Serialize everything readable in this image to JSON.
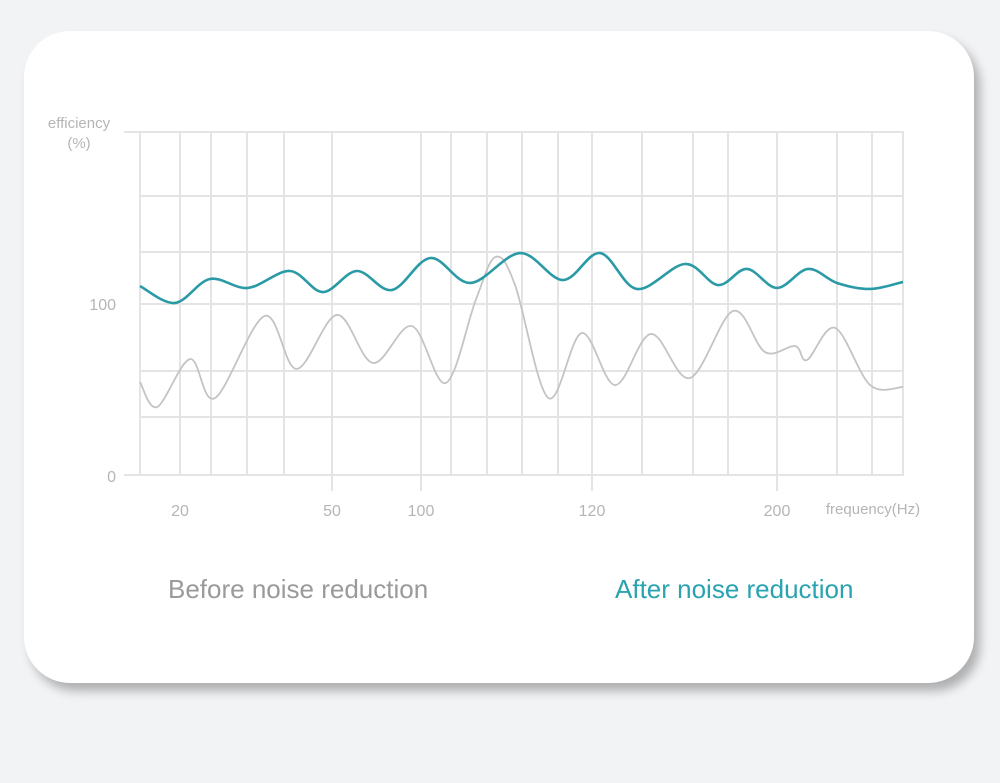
{
  "chart_data": {
    "type": "line",
    "title": "",
    "ylabel": "efficiency\n(%)",
    "ylabel_lines": [
      "efficiency",
      "(%)"
    ],
    "xlabel": "frequency(Hz)",
    "ylim": [
      0,
      200
    ],
    "y_ticks": [
      "100",
      "0"
    ],
    "x_ticks": [
      "20",
      "50",
      "100",
      "120",
      "200"
    ],
    "grid": true,
    "legend_placement": "bottom",
    "series": [
      {
        "name": "Before noise reduction",
        "color": "#c4c4c4",
        "x": [
          12.1,
          15.5,
          22.0,
          26.9,
          36.7,
          43.0,
          52.8,
          73.0,
          94.9,
          102.9,
          106.4,
          108.7,
          111.0,
          114.9,
          118.8,
          130.0,
          145.5,
          162.3,
          181.0,
          194.8,
          207.8,
          213.0,
          225.1,
          240.2,
          254.4
        ],
        "y": [
          54.4,
          39.8,
          67.8,
          45.0,
          93.0,
          62.0,
          93.6,
          65.5,
          87.1,
          53.8,
          102.3,
          127.5,
          111.1,
          45.0,
          83.0,
          52.6,
          82.5,
          56.7,
          95.9,
          71.9,
          75.4,
          67.3,
          86.0,
          52.6,
          51.5
        ]
      },
      {
        "name": "After noise reduction",
        "color": "#2a9aa6",
        "x": [
          12.1,
          19.0,
          25.9,
          33.4,
          41.7,
          48.2,
          64.0,
          83.7,
          101.1,
          105.8,
          111.6,
          116.6,
          123.5,
          139.5,
          160.2,
          174.5,
          187.0,
          200.0,
          213.4,
          225.9,
          240.2,
          254.4
        ],
        "y": [
          110.5,
          100.6,
          114.6,
          109.4,
          119.3,
          107.0,
          119.3,
          108.2,
          126.9,
          112.3,
          129.8,
          114.0,
          129.8,
          108.8,
          123.4,
          111.1,
          120.5,
          109.4,
          120.5,
          112.3,
          108.8,
          112.9
        ]
      }
    ]
  },
  "legend": {
    "before": "Before noise reduction",
    "after": "After noise reduction"
  }
}
